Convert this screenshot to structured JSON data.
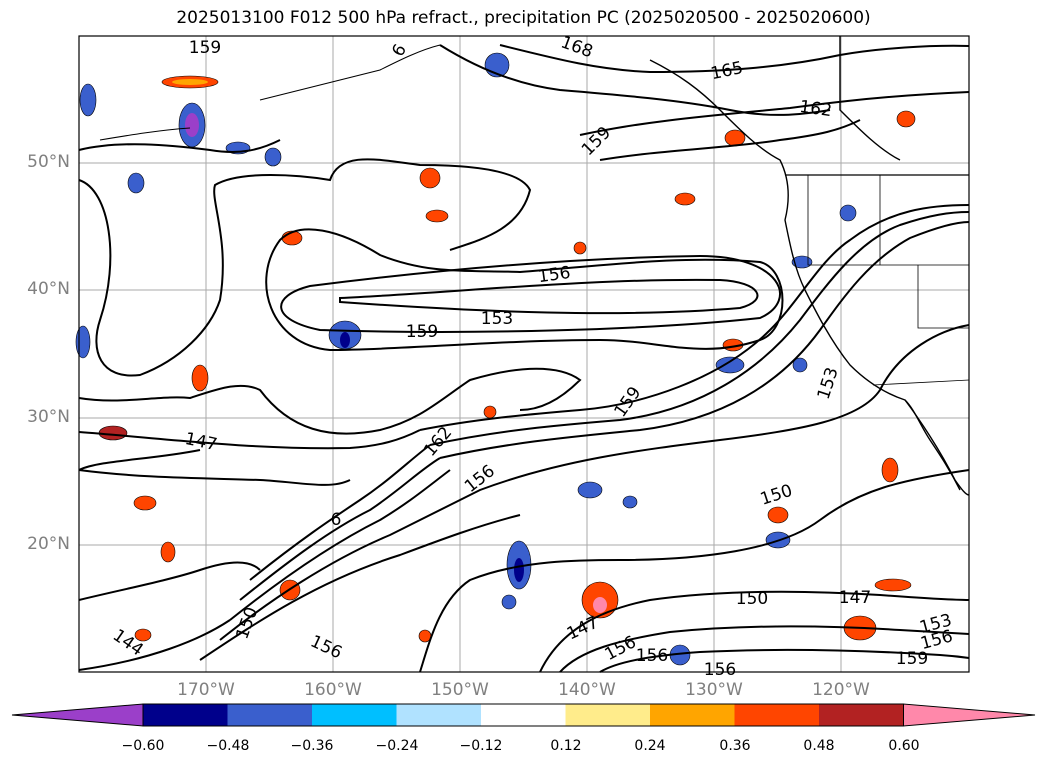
{
  "title": "2025013100 F012 500 hPa refract., precipitation PC (2025020500 - 2025020600)",
  "latitude_labels": [
    "50°N",
    "40°N",
    "30°N",
    "20°N"
  ],
  "longitude_labels": [
    "170°W",
    "160°W",
    "150°W",
    "140°W",
    "130°W",
    "120°W"
  ],
  "colorbar": {
    "ticks": [
      "−0.60",
      "−0.48",
      "−0.36",
      "−0.24",
      "−0.12",
      "0.12",
      "0.24",
      "0.36",
      "0.48",
      "0.60"
    ],
    "colors": [
      "#9b3fc9",
      "#00008b",
      "#3a5fcd",
      "#00bfff",
      "#b0e2ff",
      "#ffffff",
      "#ffec8b",
      "#ffa500",
      "#ff4500",
      "#b22222",
      "#ff88aa"
    ]
  },
  "contour_labels": [
    "159",
    "168",
    "165",
    "162",
    "159",
    "156",
    "153",
    "159",
    "147",
    "162",
    "156",
    "159",
    "150",
    "153",
    "150",
    "147",
    "147",
    "156",
    "156",
    "156",
    "144",
    "150",
    "156",
    "153",
    "156",
    "159",
    "6",
    "6"
  ],
  "colors": {
    "contour": "#000000",
    "grid": "#aaaaaa",
    "coast": "#000000"
  }
}
